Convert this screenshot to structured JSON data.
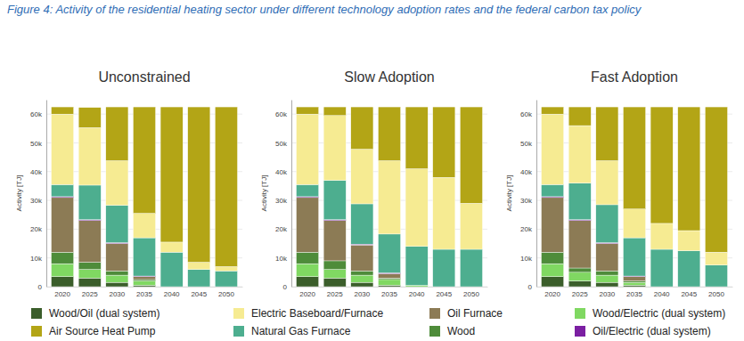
{
  "caption": "Figure 4: Activity of the residential heating sector under different technology adoption rates and the federal carbon tax policy",
  "chart_data": [
    {
      "type": "bar",
      "title": "Unconstrained",
      "y_label": "Activity [TJ]",
      "stacked": true,
      "grid": true,
      "legend": "bottom",
      "categories": [
        "2020",
        "2025",
        "2030",
        "2035",
        "2040",
        "2045",
        "2050"
      ],
      "ylim": [
        0,
        65000
      ],
      "yticks": [
        0,
        {
          "value": 10000,
          "label": "10k"
        },
        {
          "value": 20000,
          "label": "20k"
        },
        {
          "value": 30000,
          "label": "30k"
        },
        {
          "value": 40000,
          "label": "40k"
        },
        {
          "value": 50000,
          "label": "50k"
        },
        {
          "value": 60000,
          "label": "60k"
        }
      ],
      "series": [
        {
          "name": "Wood/Oil (dual system)",
          "color": "#3b5e2b",
          "values": [
            3500,
            3000,
            1500,
            500,
            0,
            0,
            0
          ]
        },
        {
          "name": "Wood/Electric (dual system)",
          "color": "#80d862",
          "values": [
            4500,
            3000,
            2500,
            1500,
            0,
            0,
            0
          ]
        },
        {
          "name": "Wood",
          "color": "#4e8c3a",
          "values": [
            4000,
            2500,
            1500,
            500,
            0,
            0,
            0
          ]
        },
        {
          "name": "Oil Furnace",
          "color": "#8c7b55",
          "values": [
            19000,
            14500,
            9500,
            1000,
            0,
            0,
            0
          ]
        },
        {
          "name": "Oil/Electric (dual system)",
          "color": "#7b1fa2",
          "values": [
            300,
            300,
            300,
            200,
            0,
            0,
            0
          ]
        },
        {
          "name": "Natural Gas Furnace",
          "color": "#4dae8f",
          "values": [
            4200,
            12000,
            13000,
            13300,
            12000,
            6000,
            5500
          ]
        },
        {
          "name": "Electric Baseboard/Furnace",
          "color": "#f6eb92",
          "values": [
            24500,
            20000,
            15500,
            8500,
            3500,
            2500,
            1500
          ]
        },
        {
          "name": "Air Source Heat Pump",
          "color": "#b3a516",
          "values": [
            2500,
            7000,
            18700,
            37000,
            47000,
            54000,
            55500
          ]
        }
      ]
    },
    {
      "type": "bar",
      "title": "Slow Adoption",
      "y_label": "Activity [TJ]",
      "stacked": true,
      "grid": true,
      "categories": [
        "2020",
        "2025",
        "2030",
        "2035",
        "2040",
        "2045",
        "2050"
      ],
      "ylim": [
        0,
        65000
      ],
      "yticks": [
        0,
        {
          "value": 10000,
          "label": "10k"
        },
        {
          "value": 20000,
          "label": "20k"
        },
        {
          "value": 30000,
          "label": "30k"
        },
        {
          "value": 40000,
          "label": "40k"
        },
        {
          "value": 50000,
          "label": "50k"
        },
        {
          "value": 60000,
          "label": "60k"
        }
      ],
      "series": [
        {
          "name": "Wood/Oil (dual system)",
          "color": "#3b5e2b",
          "values": [
            3500,
            3000,
            1500,
            500,
            0,
            0,
            0
          ]
        },
        {
          "name": "Wood/Electric (dual system)",
          "color": "#80d862",
          "values": [
            4500,
            3000,
            2500,
            2000,
            500,
            0,
            0
          ]
        },
        {
          "name": "Wood",
          "color": "#4e8c3a",
          "values": [
            4000,
            3000,
            1500,
            500,
            0,
            0,
            0
          ]
        },
        {
          "name": "Oil Furnace",
          "color": "#8c7b55",
          "values": [
            19000,
            14000,
            9000,
            1500,
            0,
            0,
            0
          ]
        },
        {
          "name": "Oil/Electric (dual system)",
          "color": "#7b1fa2",
          "values": [
            300,
            300,
            300,
            300,
            0,
            0,
            0
          ]
        },
        {
          "name": "Natural Gas Furnace",
          "color": "#4dae8f",
          "values": [
            4200,
            13700,
            14000,
            13500,
            13500,
            13000,
            13000
          ]
        },
        {
          "name": "Electric Baseboard/Furnace",
          "color": "#f6eb92",
          "values": [
            24500,
            22500,
            19000,
            25500,
            27000,
            25000,
            16000
          ]
        },
        {
          "name": "Air Source Heat Pump",
          "color": "#b3a516",
          "values": [
            2500,
            3000,
            14700,
            18700,
            21500,
            24500,
            33500
          ]
        }
      ]
    },
    {
      "type": "bar",
      "title": "Fast Adoption",
      "y_label": "Activity [TJ]",
      "stacked": true,
      "grid": true,
      "categories": [
        "2020",
        "2025",
        "2030",
        "2035",
        "2040",
        "2045",
        "2050"
      ],
      "ylim": [
        0,
        65000
      ],
      "yticks": [
        0,
        {
          "value": 10000,
          "label": "10k"
        },
        {
          "value": 20000,
          "label": "20k"
        },
        {
          "value": 30000,
          "label": "30k"
        },
        {
          "value": 40000,
          "label": "40k"
        },
        {
          "value": 50000,
          "label": "50k"
        },
        {
          "value": 60000,
          "label": "60k"
        }
      ],
      "series": [
        {
          "name": "Wood/Oil (dual system)",
          "color": "#3b5e2b",
          "values": [
            3500,
            2000,
            1500,
            500,
            0,
            0,
            0
          ]
        },
        {
          "name": "Wood/Electric (dual system)",
          "color": "#80d862",
          "values": [
            4500,
            3000,
            2500,
            1000,
            0,
            0,
            0
          ]
        },
        {
          "name": "Wood",
          "color": "#4e8c3a",
          "values": [
            4000,
            1500,
            1500,
            500,
            0,
            0,
            0
          ]
        },
        {
          "name": "Oil Furnace",
          "color": "#8c7b55",
          "values": [
            19000,
            16500,
            9500,
            1500,
            0,
            0,
            0
          ]
        },
        {
          "name": "Oil/Electric (dual system)",
          "color": "#7b1fa2",
          "values": [
            300,
            300,
            300,
            200,
            0,
            0,
            0
          ]
        },
        {
          "name": "Natural Gas Furnace",
          "color": "#4dae8f",
          "values": [
            4200,
            12700,
            13200,
            13300,
            13000,
            12500,
            7500
          ]
        },
        {
          "name": "Electric Baseboard/Furnace",
          "color": "#f6eb92",
          "values": [
            24500,
            20000,
            15300,
            10000,
            9000,
            7000,
            4500
          ]
        },
        {
          "name": "Air Source Heat Pump",
          "color": "#b3a516",
          "values": [
            2500,
            6500,
            18700,
            35500,
            40500,
            43000,
            50500
          ]
        }
      ]
    }
  ]
}
